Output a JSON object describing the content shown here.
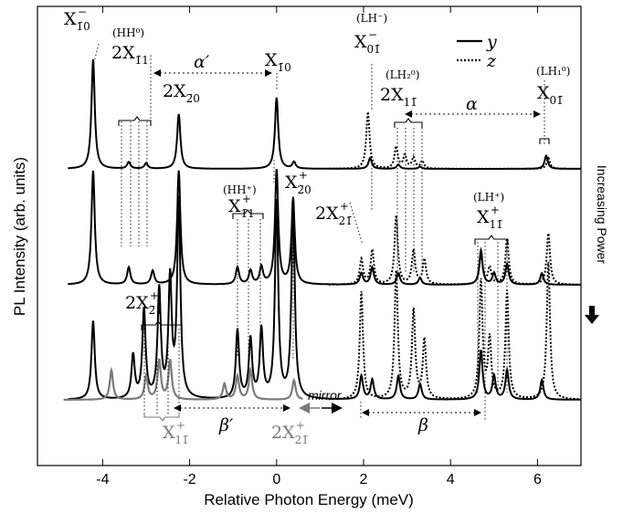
{
  "chart_data": {
    "type": "line",
    "xlabel": "Relative Photon Energy (meV)",
    "ylabel": "PL Intensity (arb. units)",
    "xlim": [
      -5.5,
      7
    ],
    "xticks": [
      "-4",
      "-2",
      "0",
      "2",
      "4",
      "6"
    ],
    "xtick_values": [
      -4,
      -2,
      0,
      2,
      4,
      6
    ],
    "legend": [
      {
        "name": "y",
        "style": "solid"
      },
      {
        "name": "z",
        "style": "dotted"
      }
    ],
    "legend_position": "top-right",
    "side_annotation": "Increasing Power",
    "mirror_label": "mirror",
    "traces": [
      {
        "offset": 0.0,
        "power": "low",
        "series": [
          {
            "name": "y",
            "peaks": [
              [
                -4.22,
                1.0
              ],
              [
                -3.4,
                0.06
              ],
              [
                -3.0,
                0.05
              ],
              [
                -2.25,
                0.5
              ],
              [
                0.0,
                0.65
              ],
              [
                0.4,
                0.06
              ],
              [
                2.15,
                0.1
              ],
              [
                2.8,
                0.04
              ],
              [
                3.3,
                0.02
              ],
              [
                6.2,
                0.12
              ]
            ]
          },
          {
            "name": "z",
            "peaks": [
              [
                2.1,
                0.52
              ],
              [
                2.75,
                0.2
              ],
              [
                2.95,
                0.12
              ],
              [
                3.15,
                0.1
              ],
              [
                3.35,
                0.07
              ],
              [
                6.25,
                0.1
              ]
            ]
          }
        ]
      },
      {
        "offset": 1.0,
        "power": "medium",
        "series": [
          {
            "name": "y",
            "peaks": [
              [
                -4.22,
                1.0
              ],
              [
                -3.4,
                0.15
              ],
              [
                -2.85,
                0.12
              ],
              [
                -2.25,
                1.0
              ],
              [
                -0.9,
                0.15
              ],
              [
                -0.6,
                0.12
              ],
              [
                -0.35,
                0.15
              ],
              [
                0.0,
                1.0
              ],
              [
                0.38,
                0.75
              ],
              [
                1.95,
                0.1
              ],
              [
                2.2,
                0.15
              ],
              [
                2.8,
                0.1
              ],
              [
                3.3,
                0.06
              ],
              [
                4.7,
                0.3
              ],
              [
                5.0,
                0.1
              ],
              [
                5.3,
                0.18
              ],
              [
                6.1,
                0.1
              ]
            ]
          },
          {
            "name": "z",
            "peaks": [
              [
                1.95,
                0.22
              ],
              [
                2.2,
                0.3
              ],
              [
                2.75,
                0.6
              ],
              [
                3.15,
                0.3
              ],
              [
                3.4,
                0.22
              ],
              [
                4.7,
                0.25
              ],
              [
                4.9,
                0.15
              ],
              [
                5.3,
                0.4
              ],
              [
                6.25,
                0.45
              ]
            ]
          }
        ]
      },
      {
        "offset": 2.0,
        "power": "high",
        "series": [
          {
            "name": "y",
            "peaks": [
              [
                -4.22,
                0.4
              ],
              [
                -3.3,
                0.22
              ],
              [
                -3.05,
                0.45
              ],
              [
                -2.7,
                0.55
              ],
              [
                -2.45,
                0.6
              ],
              [
                -2.25,
                1.0
              ],
              [
                -0.9,
                0.35
              ],
              [
                -0.6,
                0.3
              ],
              [
                -0.35,
                0.35
              ],
              [
                0.0,
                1.0
              ],
              [
                0.38,
                1.0
              ],
              [
                1.95,
                0.12
              ],
              [
                2.2,
                0.1
              ],
              [
                2.8,
                0.12
              ],
              [
                3.3,
                0.08
              ],
              [
                4.7,
                0.25
              ],
              [
                5.0,
                0.12
              ],
              [
                5.3,
                0.15
              ],
              [
                6.1,
                0.1
              ]
            ]
          },
          {
            "name": "z",
            "peaks": [
              [
                1.95,
                0.55
              ],
              [
                2.75,
                0.65
              ],
              [
                3.15,
                0.45
              ],
              [
                3.4,
                0.3
              ],
              [
                4.7,
                0.6
              ],
              [
                4.9,
                0.3
              ],
              [
                5.3,
                0.55
              ],
              [
                6.25,
                0.7
              ]
            ]
          },
          {
            "name": "mirror",
            "color": "#7a7a7a",
            "peaks": [
              [
                -3.8,
                0.15
              ],
              [
                -3.0,
                0.12
              ],
              [
                -2.7,
                0.2
              ],
              [
                -2.45,
                0.2
              ],
              [
                -1.2,
                0.08
              ],
              [
                -0.9,
                0.12
              ],
              [
                -0.6,
                0.15
              ],
              [
                0.4,
                0.1
              ]
            ]
          }
        ]
      }
    ]
  },
  "labels": {
    "x_m10": "X",
    "x_m10_sub": "1̄0",
    "x_m10_sup": "−",
    "hh0": "(HH⁰)",
    "two_x_m11": "2X",
    "two_x_m11_sub": "1̄1",
    "alpha_prime": "α′",
    "two_x_m20": "2X",
    "two_x_m20_sub": "2̄0",
    "x_m10b": "X",
    "x_m10b_sub": "1̄0",
    "lh_minus": "(LH⁻)",
    "x_0m1_minus": "X",
    "x_0m1_minus_sub": "01̄",
    "x_0m1_minus_sup": "−",
    "lh2_0": "(LH₂⁰)",
    "two_x_1m1": "2X",
    "two_x_1m1_sub": "11̄",
    "alpha": "α",
    "lh1_0": "(LH₁⁰)",
    "x_0m1": "X",
    "x_0m1_sub": "01̄",
    "hh_plus": "(HH⁺)",
    "x_m11_plus": "X",
    "x_m11_plus_sub": "1̄1",
    "x_m11_plus_sup": "+",
    "x_m20_plus": "X",
    "x_m20_plus_sub": "2̄0",
    "x_m20_plus_sup": "+",
    "two_x_2m1_plus": "2X",
    "two_x_2m1_plus_sub": "21̄",
    "two_x_2m1_plus_sup": "+",
    "lh_plus": "(LH⁺)",
    "x_1m1_plus": "X",
    "x_1m1_plus_sub": "11̄",
    "x_1m1_plus_sup": "+",
    "two_x_m21_plus": "2X",
    "two_x_m21_plus_sub": "2̄1",
    "two_x_m21_plus_sup": "+",
    "beta_prime": "β′",
    "beta": "β",
    "gray_x_1m1_plus": "X",
    "gray_x_1m1_plus_sub": "11̄",
    "gray_x_1m1_plus_sup": "+",
    "gray_two_x_2m1_plus": "2X",
    "gray_two_x_2m1_plus_sub": "21̄",
    "gray_two_x_2m1_plus_sup": "+"
  },
  "colors": {
    "primary": "#000000",
    "mirror": "#7a7a7a"
  }
}
